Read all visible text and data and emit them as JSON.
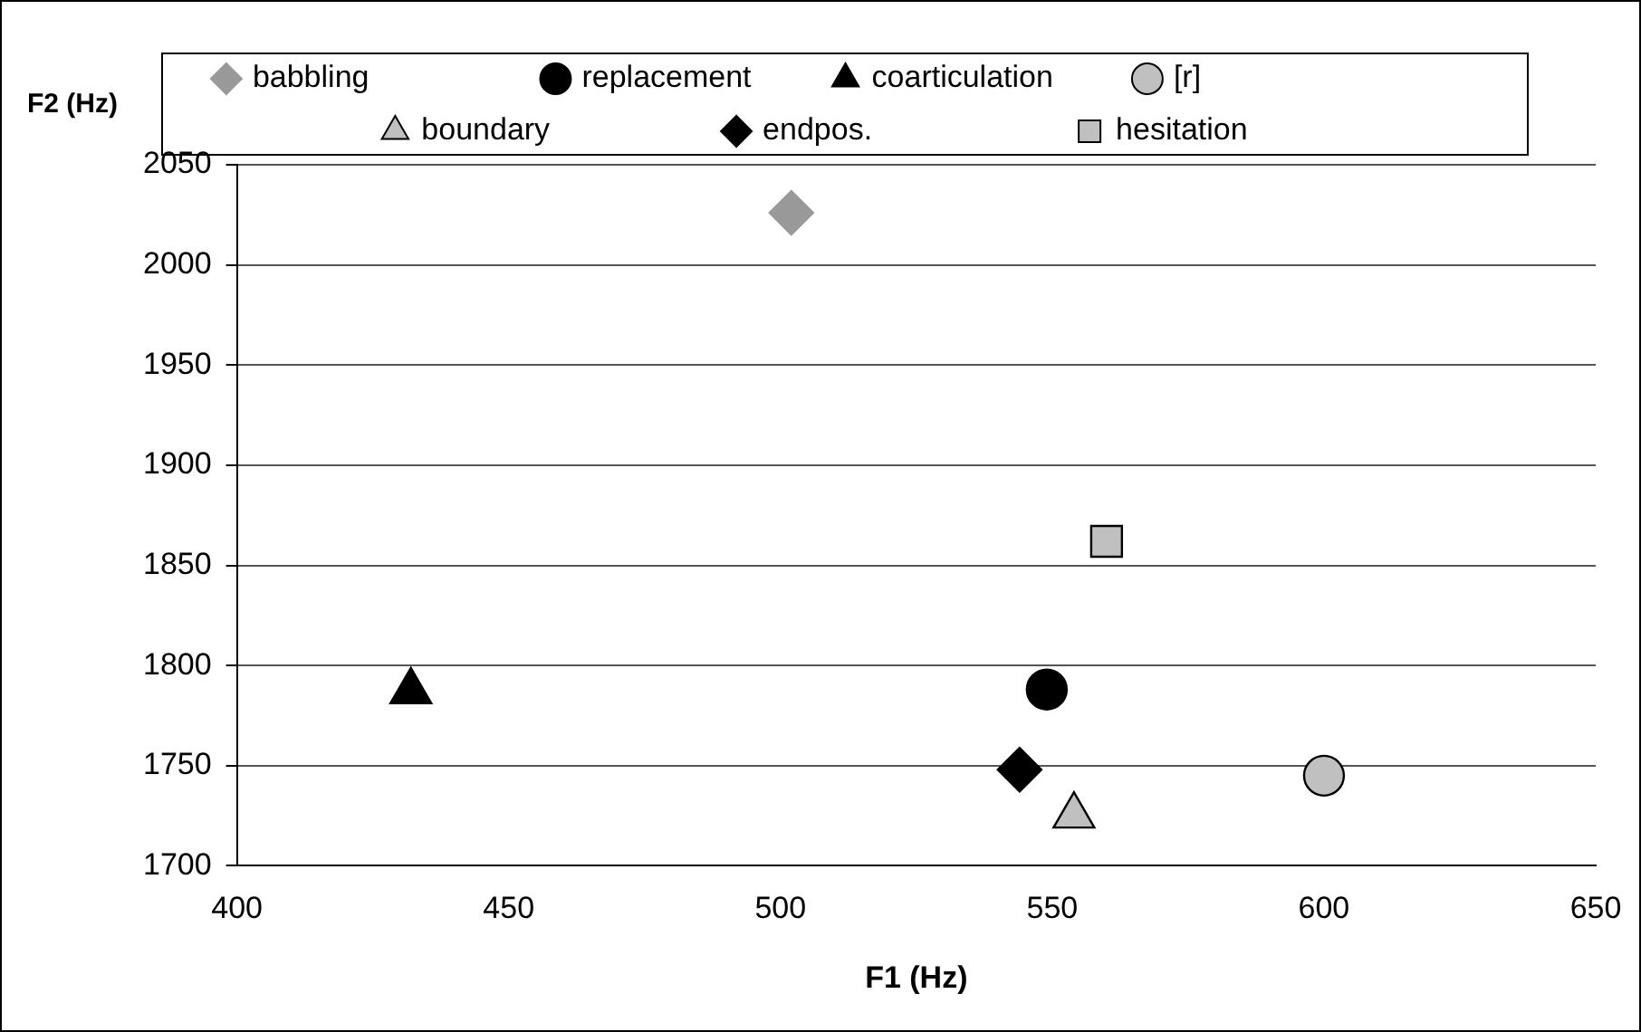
{
  "chart_data": {
    "type": "scatter",
    "xlabel": "F1 (Hz)",
    "ylabel": "F2 (Hz)",
    "xlim": [
      400,
      650
    ],
    "xticks": [
      400,
      450,
      500,
      550,
      600,
      650
    ],
    "ylim": [
      1700,
      2050
    ],
    "yticks": [
      1700,
      1750,
      1800,
      1850,
      1900,
      1950,
      2000,
      2050
    ],
    "grid": "y",
    "legend": "top",
    "series": [
      {
        "name": "babbling",
        "type": "line",
        "marker": "diamond",
        "color": "#999999",
        "x": [
          502
        ],
        "values": [
          2026
        ]
      },
      {
        "name": "replacement",
        "marker": "circle",
        "color": "#000000",
        "x": [
          549
        ],
        "values": [
          1788
        ]
      },
      {
        "name": "coarticulation",
        "marker": "triangle",
        "color": "#000000",
        "x": [
          432
        ],
        "values": [
          1787
        ]
      },
      {
        "name": "[r]",
        "marker": "circle",
        "color": "#c0c0c0",
        "x": [
          600
        ],
        "values": [
          1745
        ]
      },
      {
        "name": "boundary",
        "marker": "triangle",
        "color": "#c0c0c0",
        "x": [
          554
        ],
        "values": [
          1725
        ]
      },
      {
        "name": "endpos.",
        "marker": "diamond",
        "color": "#000000",
        "x": [
          544
        ],
        "values": [
          1748
        ]
      },
      {
        "name": "hesitation",
        "marker": "square",
        "color": "#c0c0c0",
        "x": [
          560
        ],
        "values": [
          1862
        ]
      }
    ]
  }
}
